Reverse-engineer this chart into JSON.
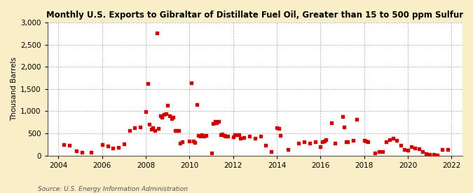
{
  "title": "Monthly U.S. Exports to Gibraltar of Distillate Fuel Oil, Greater than 15 to 500 ppm Sulfur",
  "ylabel": "Thousand Barrels",
  "source": "Source: U.S. Energy Information Administration",
  "fig_background": "#faeec8",
  "plot_background": "#ffffff",
  "marker_color": "#cc0000",
  "xlim_start": 2003.5,
  "xlim_end": 2022.5,
  "ylim": [
    0,
    3000
  ],
  "yticks": [
    0,
    500,
    1000,
    1500,
    2000,
    2500,
    3000
  ],
  "xticks": [
    2004,
    2006,
    2008,
    2010,
    2012,
    2014,
    2016,
    2018,
    2020,
    2022
  ],
  "data_points": [
    [
      2004.25,
      250
    ],
    [
      2004.5,
      230
    ],
    [
      2004.83,
      100
    ],
    [
      2005.08,
      80
    ],
    [
      2005.5,
      75
    ],
    [
      2006.0,
      250
    ],
    [
      2006.25,
      220
    ],
    [
      2006.5,
      175
    ],
    [
      2006.75,
      190
    ],
    [
      2007.0,
      270
    ],
    [
      2007.25,
      560
    ],
    [
      2007.5,
      625
    ],
    [
      2007.75,
      650
    ],
    [
      2008.0,
      990
    ],
    [
      2008.08,
      1620
    ],
    [
      2008.17,
      700
    ],
    [
      2008.25,
      600
    ],
    [
      2008.33,
      630
    ],
    [
      2008.42,
      565
    ],
    [
      2008.5,
      2760
    ],
    [
      2008.58,
      610
    ],
    [
      2008.67,
      900
    ],
    [
      2008.75,
      870
    ],
    [
      2008.83,
      935
    ],
    [
      2008.92,
      950
    ],
    [
      2009.0,
      1130
    ],
    [
      2009.08,
      900
    ],
    [
      2009.17,
      830
    ],
    [
      2009.25,
      870
    ],
    [
      2009.33,
      565
    ],
    [
      2009.42,
      565
    ],
    [
      2009.5,
      560
    ],
    [
      2009.58,
      285
    ],
    [
      2009.67,
      315
    ],
    [
      2010.0,
      335
    ],
    [
      2010.08,
      1640
    ],
    [
      2010.17,
      335
    ],
    [
      2010.25,
      300
    ],
    [
      2010.33,
      1150
    ],
    [
      2010.42,
      455
    ],
    [
      2010.5,
      435
    ],
    [
      2010.58,
      465
    ],
    [
      2010.67,
      435
    ],
    [
      2010.75,
      455
    ],
    [
      2011.0,
      55
    ],
    [
      2011.08,
      725
    ],
    [
      2011.17,
      765
    ],
    [
      2011.25,
      745
    ],
    [
      2011.33,
      765
    ],
    [
      2011.42,
      475
    ],
    [
      2011.5,
      485
    ],
    [
      2011.58,
      455
    ],
    [
      2011.67,
      445
    ],
    [
      2011.75,
      435
    ],
    [
      2012.0,
      425
    ],
    [
      2012.08,
      465
    ],
    [
      2012.17,
      465
    ],
    [
      2012.25,
      465
    ],
    [
      2012.33,
      385
    ],
    [
      2012.5,
      405
    ],
    [
      2012.75,
      445
    ],
    [
      2013.0,
      385
    ],
    [
      2013.25,
      445
    ],
    [
      2013.5,
      225
    ],
    [
      2013.75,
      85
    ],
    [
      2014.0,
      625
    ],
    [
      2014.08,
      605
    ],
    [
      2014.17,
      455
    ],
    [
      2014.5,
      135
    ],
    [
      2015.0,
      275
    ],
    [
      2015.25,
      305
    ],
    [
      2015.5,
      285
    ],
    [
      2015.75,
      315
    ],
    [
      2016.0,
      205
    ],
    [
      2016.08,
      315
    ],
    [
      2016.17,
      335
    ],
    [
      2016.25,
      355
    ],
    [
      2016.5,
      745
    ],
    [
      2016.67,
      285
    ],
    [
      2017.0,
      885
    ],
    [
      2017.08,
      645
    ],
    [
      2017.17,
      305
    ],
    [
      2017.25,
      315
    ],
    [
      2017.5,
      345
    ],
    [
      2017.67,
      815
    ],
    [
      2018.0,
      345
    ],
    [
      2018.08,
      325
    ],
    [
      2018.17,
      305
    ],
    [
      2018.5,
      65
    ],
    [
      2018.67,
      85
    ],
    [
      2018.83,
      85
    ],
    [
      2019.0,
      315
    ],
    [
      2019.17,
      355
    ],
    [
      2019.33,
      385
    ],
    [
      2019.5,
      345
    ],
    [
      2019.67,
      225
    ],
    [
      2019.83,
      135
    ],
    [
      2020.0,
      115
    ],
    [
      2020.17,
      205
    ],
    [
      2020.33,
      165
    ],
    [
      2020.5,
      155
    ],
    [
      2020.67,
      85
    ],
    [
      2020.83,
      45
    ],
    [
      2021.0,
      35
    ],
    [
      2021.17,
      25
    ],
    [
      2021.33,
      15
    ],
    [
      2021.58,
      135
    ],
    [
      2021.83,
      135
    ]
  ]
}
